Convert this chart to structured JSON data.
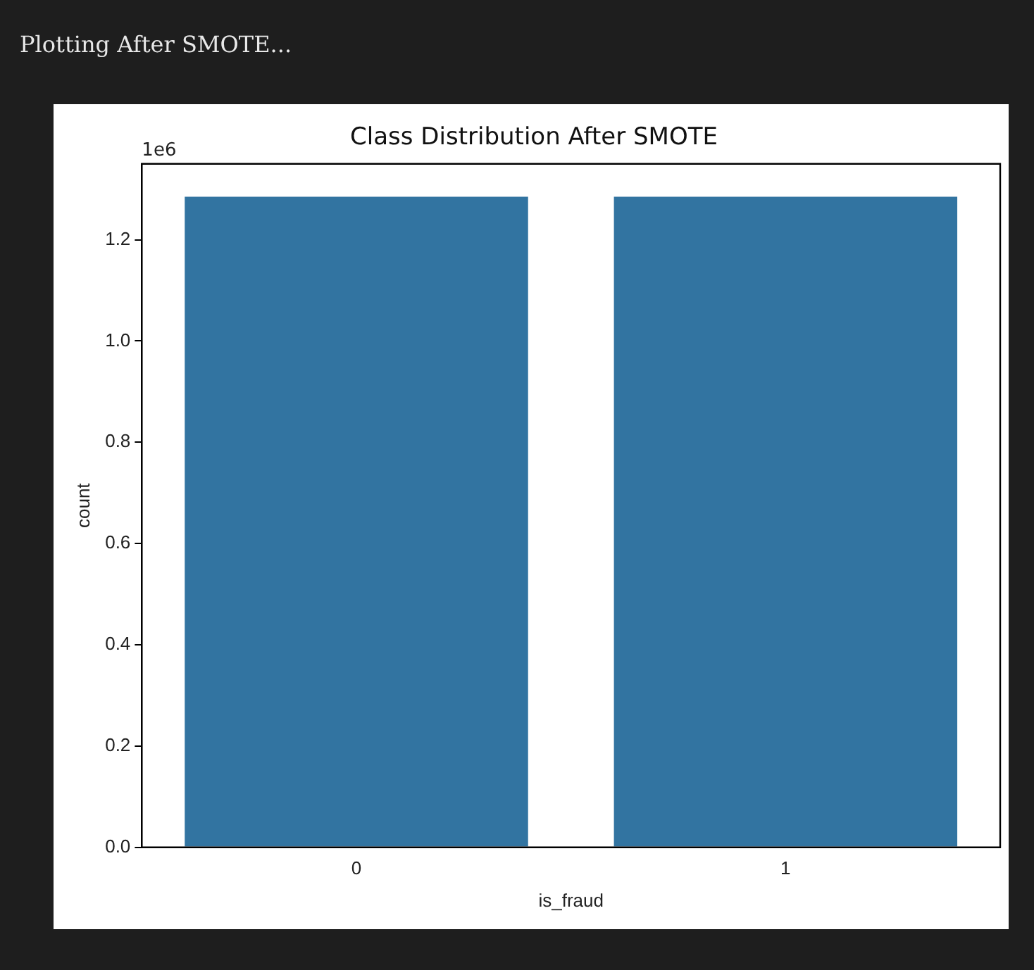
{
  "chart_data": {
    "type": "bar",
    "title": "Class Distribution After SMOTE",
    "xlabel": "is_fraud",
    "ylabel": "count",
    "categories": [
      "0",
      "1"
    ],
    "values": [
      1.285,
      1.285
    ],
    "color": "#3274a1",
    "ylim": [
      0,
      1.35
    ],
    "yticks": [
      {
        "value": 0,
        "label": "0.0"
      },
      {
        "value": 0.2,
        "label": "0.2"
      },
      {
        "value": 0.4,
        "label": "0.4"
      },
      {
        "value": 0.6,
        "label": "0.6"
      },
      {
        "value": 0.8,
        "label": "0.8"
      },
      {
        "value": 1,
        "label": "1.0"
      },
      {
        "value": 1.2,
        "label": "1.2"
      }
    ],
    "grid": false,
    "legend": false,
    "annotations": [
      "Plotting After SMOTE...",
      "1e6"
    ]
  }
}
